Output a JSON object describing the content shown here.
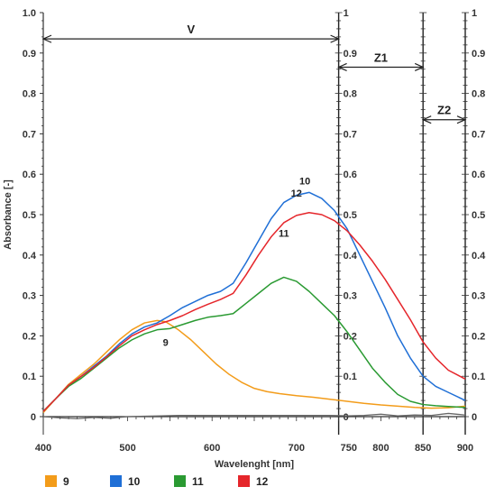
{
  "chart_data": {
    "type": "line",
    "xlabel": "Wavelenght [nm]",
    "ylabel": "Absorbance [-]",
    "xlim": [
      400,
      900
    ],
    "ylim": [
      0,
      1
    ],
    "x_ticks": [
      400,
      500,
      600,
      700,
      750,
      800,
      850,
      900
    ],
    "y_ticks": [
      0,
      0.1,
      0.2,
      0.3,
      0.4,
      0.5,
      0.6,
      0.7,
      0.8,
      0.9,
      1.0
    ],
    "y_tick_labels": [
      "0",
      "0.1",
      "0.2",
      "0.3",
      "0.4",
      "0.5",
      "0.6",
      "0.7",
      "0.8",
      "0.9",
      "1.0"
    ],
    "right_y_tick_labels": [
      "0",
      "0.1",
      "0.2",
      "0.3",
      "0.4",
      "0.5",
      "0.6",
      "0.7",
      "0.8",
      "0.9",
      "1"
    ],
    "mid_y_tick_labels": [
      "0",
      "0.1",
      "0.2",
      "0.3",
      "0.4",
      "0.5",
      "0.6",
      "0.7",
      "0.8",
      "0.9",
      "1"
    ],
    "grid": false,
    "legend_position": "bottom",
    "regions": [
      {
        "label": "V",
        "x_start": 400,
        "x_end": 750,
        "y": 0.935
      },
      {
        "label": "Z1",
        "x_start": 750,
        "x_end": 850,
        "y": 0.865
      },
      {
        "label": "Z2",
        "x_start": 850,
        "x_end": 900,
        "y": 0.735
      }
    ],
    "vertical_lines": [
      750,
      850,
      900
    ],
    "series": [
      {
        "name": "9",
        "color": "#f39c1a",
        "label_at": [
          545,
          0.175
        ],
        "x": [
          400,
          415,
          430,
          445,
          460,
          475,
          490,
          505,
          520,
          535,
          545,
          560,
          575,
          590,
          605,
          620,
          635,
          650,
          665,
          680,
          700,
          720,
          740,
          760,
          780,
          800,
          820,
          840,
          860,
          880,
          900
        ],
        "y": [
          0.01,
          0.045,
          0.08,
          0.105,
          0.13,
          0.16,
          0.19,
          0.215,
          0.232,
          0.238,
          0.235,
          0.215,
          0.19,
          0.16,
          0.13,
          0.105,
          0.085,
          0.07,
          0.062,
          0.057,
          0.052,
          0.048,
          0.043,
          0.038,
          0.033,
          0.029,
          0.026,
          0.023,
          0.021,
          0.022,
          0.026
        ]
      },
      {
        "name": "10",
        "color": "#1f6fd6",
        "label_at": [
          710,
          0.575
        ],
        "x": [
          400,
          415,
          430,
          445,
          460,
          475,
          490,
          505,
          520,
          535,
          550,
          565,
          580,
          595,
          610,
          625,
          640,
          655,
          670,
          685,
          700,
          715,
          730,
          745,
          760,
          775,
          790,
          805,
          820,
          835,
          850,
          865,
          880,
          900
        ],
        "y": [
          0.013,
          0.045,
          0.078,
          0.1,
          0.125,
          0.15,
          0.18,
          0.205,
          0.222,
          0.232,
          0.25,
          0.27,
          0.285,
          0.3,
          0.31,
          0.33,
          0.38,
          0.435,
          0.49,
          0.53,
          0.548,
          0.555,
          0.54,
          0.51,
          0.465,
          0.4,
          0.335,
          0.27,
          0.2,
          0.145,
          0.1,
          0.075,
          0.06,
          0.04
        ]
      },
      {
        "name": "11",
        "color": "#2a9a32",
        "label_at": [
          685,
          0.445
        ],
        "x": [
          400,
          415,
          430,
          445,
          460,
          475,
          490,
          505,
          520,
          535,
          550,
          565,
          580,
          595,
          610,
          625,
          640,
          655,
          670,
          685,
          700,
          715,
          730,
          745,
          760,
          775,
          790,
          805,
          820,
          835,
          850,
          865,
          880,
          900
        ],
        "y": [
          0.013,
          0.045,
          0.075,
          0.095,
          0.12,
          0.145,
          0.17,
          0.19,
          0.205,
          0.215,
          0.218,
          0.228,
          0.238,
          0.246,
          0.25,
          0.255,
          0.28,
          0.305,
          0.33,
          0.345,
          0.335,
          0.31,
          0.28,
          0.25,
          0.21,
          0.165,
          0.12,
          0.085,
          0.055,
          0.038,
          0.03,
          0.027,
          0.025,
          0.023
        ]
      },
      {
        "name": "12",
        "color": "#e5262b",
        "label_at": [
          700,
          0.545
        ],
        "x": [
          400,
          415,
          430,
          445,
          460,
          475,
          490,
          505,
          520,
          535,
          550,
          565,
          580,
          595,
          610,
          625,
          640,
          655,
          670,
          685,
          700,
          715,
          730,
          745,
          760,
          775,
          790,
          805,
          820,
          835,
          850,
          865,
          880,
          900
        ],
        "y": [
          0.013,
          0.045,
          0.078,
          0.1,
          0.122,
          0.148,
          0.175,
          0.2,
          0.215,
          0.228,
          0.238,
          0.25,
          0.265,
          0.278,
          0.29,
          0.305,
          0.35,
          0.4,
          0.445,
          0.48,
          0.498,
          0.505,
          0.5,
          0.485,
          0.46,
          0.425,
          0.385,
          0.34,
          0.29,
          0.24,
          0.185,
          0.145,
          0.115,
          0.093
        ]
      },
      {
        "name": "",
        "color": "#666666",
        "x": [
          400,
          420,
          440,
          460,
          480,
          500,
          520,
          540,
          560,
          580,
          600,
          620,
          640,
          660,
          680,
          700,
          720,
          740,
          760,
          780,
          800,
          820,
          840,
          860,
          880,
          900
        ],
        "y": [
          0.0,
          -0.003,
          -0.005,
          -0.002,
          -0.004,
          0.0,
          0.001,
          0.002,
          0.003,
          0.003,
          0.003,
          0.003,
          0.003,
          0.003,
          0.003,
          0.003,
          0.003,
          0.003,
          0.002,
          0.003,
          0.006,
          0.002,
          0.004,
          0.003,
          0.008,
          0.004
        ]
      }
    ]
  }
}
